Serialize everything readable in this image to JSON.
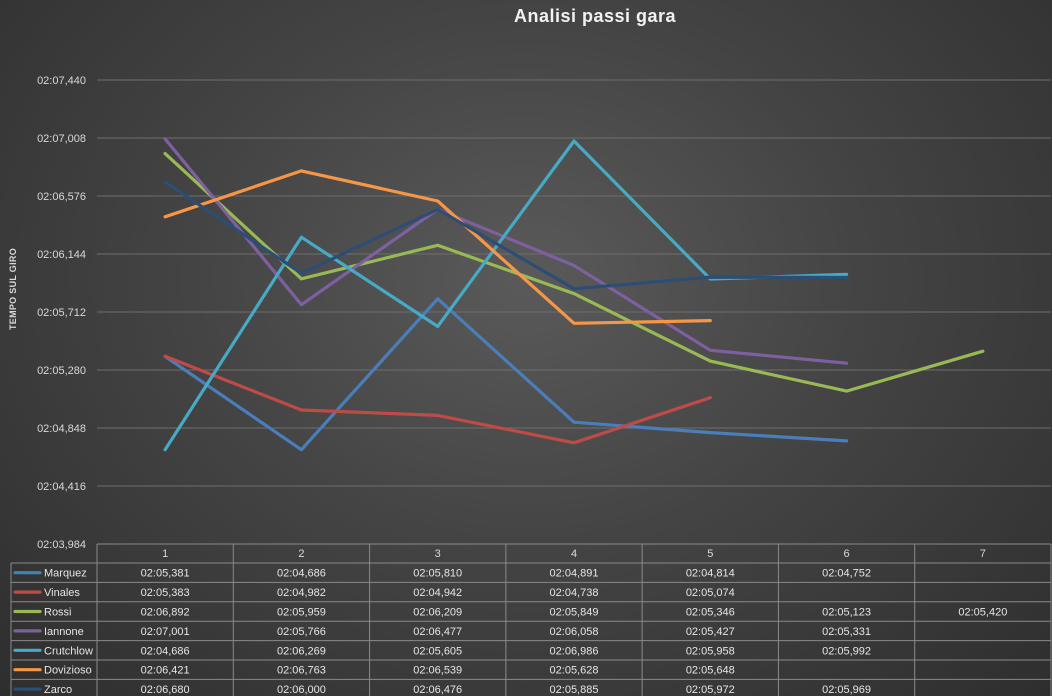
{
  "chart_data": {
    "type": "line",
    "title": "Analisi passi gara",
    "ylabel": "TEMPO SUL GIRO",
    "xlabel": "",
    "categories": [
      "1",
      "2",
      "3",
      "4",
      "5",
      "6",
      "7"
    ],
    "ylim_seconds": [
      123.984,
      127.44
    ],
    "ytick_labels": [
      "02:07,440",
      "02:07,008",
      "02:06,576",
      "02:06,144",
      "02:05,712",
      "02:05,280",
      "02:04,848",
      "02:04,416",
      "02:03,984"
    ],
    "grid": true,
    "legend": "data-table-below",
    "series": [
      {
        "name": "Marquez",
        "color": "#4a7ebb",
        "labels": [
          "02:05,381",
          "02:04,686",
          "02:05,810",
          "02:04,891",
          "02:04,814",
          "02:04,752",
          ""
        ],
        "seconds": [
          125.381,
          124.686,
          125.81,
          124.891,
          124.814,
          124.752,
          null
        ]
      },
      {
        "name": "Vinales",
        "color": "#be4b48",
        "labels": [
          "02:05,383",
          "02:04,982",
          "02:04,942",
          "02:04,738",
          "02:05,074",
          "",
          ""
        ],
        "seconds": [
          125.383,
          124.982,
          124.942,
          124.738,
          125.074,
          null,
          null
        ]
      },
      {
        "name": "Rossi",
        "color": "#98b954",
        "labels": [
          "02:06,892",
          "02:05,959",
          "02:06,209",
          "02:05,849",
          "02:05,346",
          "02:05,123",
          "02:05,420"
        ],
        "seconds": [
          126.892,
          125.959,
          126.209,
          125.849,
          125.346,
          125.123,
          125.42
        ]
      },
      {
        "name": "Iannone",
        "color": "#7d60a0",
        "labels": [
          "02:07,001",
          "02:05,766",
          "02:06,477",
          "02:06,058",
          "02:05,427",
          "02:05,331",
          ""
        ],
        "seconds": [
          127.001,
          125.766,
          126.477,
          126.058,
          125.427,
          125.331,
          null
        ]
      },
      {
        "name": "Crutchlow",
        "color": "#46aac5",
        "labels": [
          "02:04,686",
          "02:06,269",
          "02:05,605",
          "02:06,986",
          "02:05,958",
          "02:05,992",
          ""
        ],
        "seconds": [
          124.686,
          126.269,
          125.605,
          126.986,
          125.958,
          125.992,
          null
        ]
      },
      {
        "name": "Dovizioso",
        "color": "#f79646",
        "labels": [
          "02:06,421",
          "02:06,763",
          "02:06,539",
          "02:05,628",
          "02:05,648",
          "",
          ""
        ],
        "seconds": [
          126.421,
          126.763,
          126.539,
          125.628,
          125.648,
          null,
          null
        ]
      },
      {
        "name": "Zarco",
        "color": "#2c4d75",
        "labels": [
          "02:06,680",
          "02:06,000",
          "02:06,476",
          "02:05,885",
          "02:05,972",
          "02:05,969",
          ""
        ],
        "seconds": [
          126.68,
          126.0,
          126.476,
          125.885,
          125.972,
          125.969,
          null
        ]
      }
    ]
  }
}
